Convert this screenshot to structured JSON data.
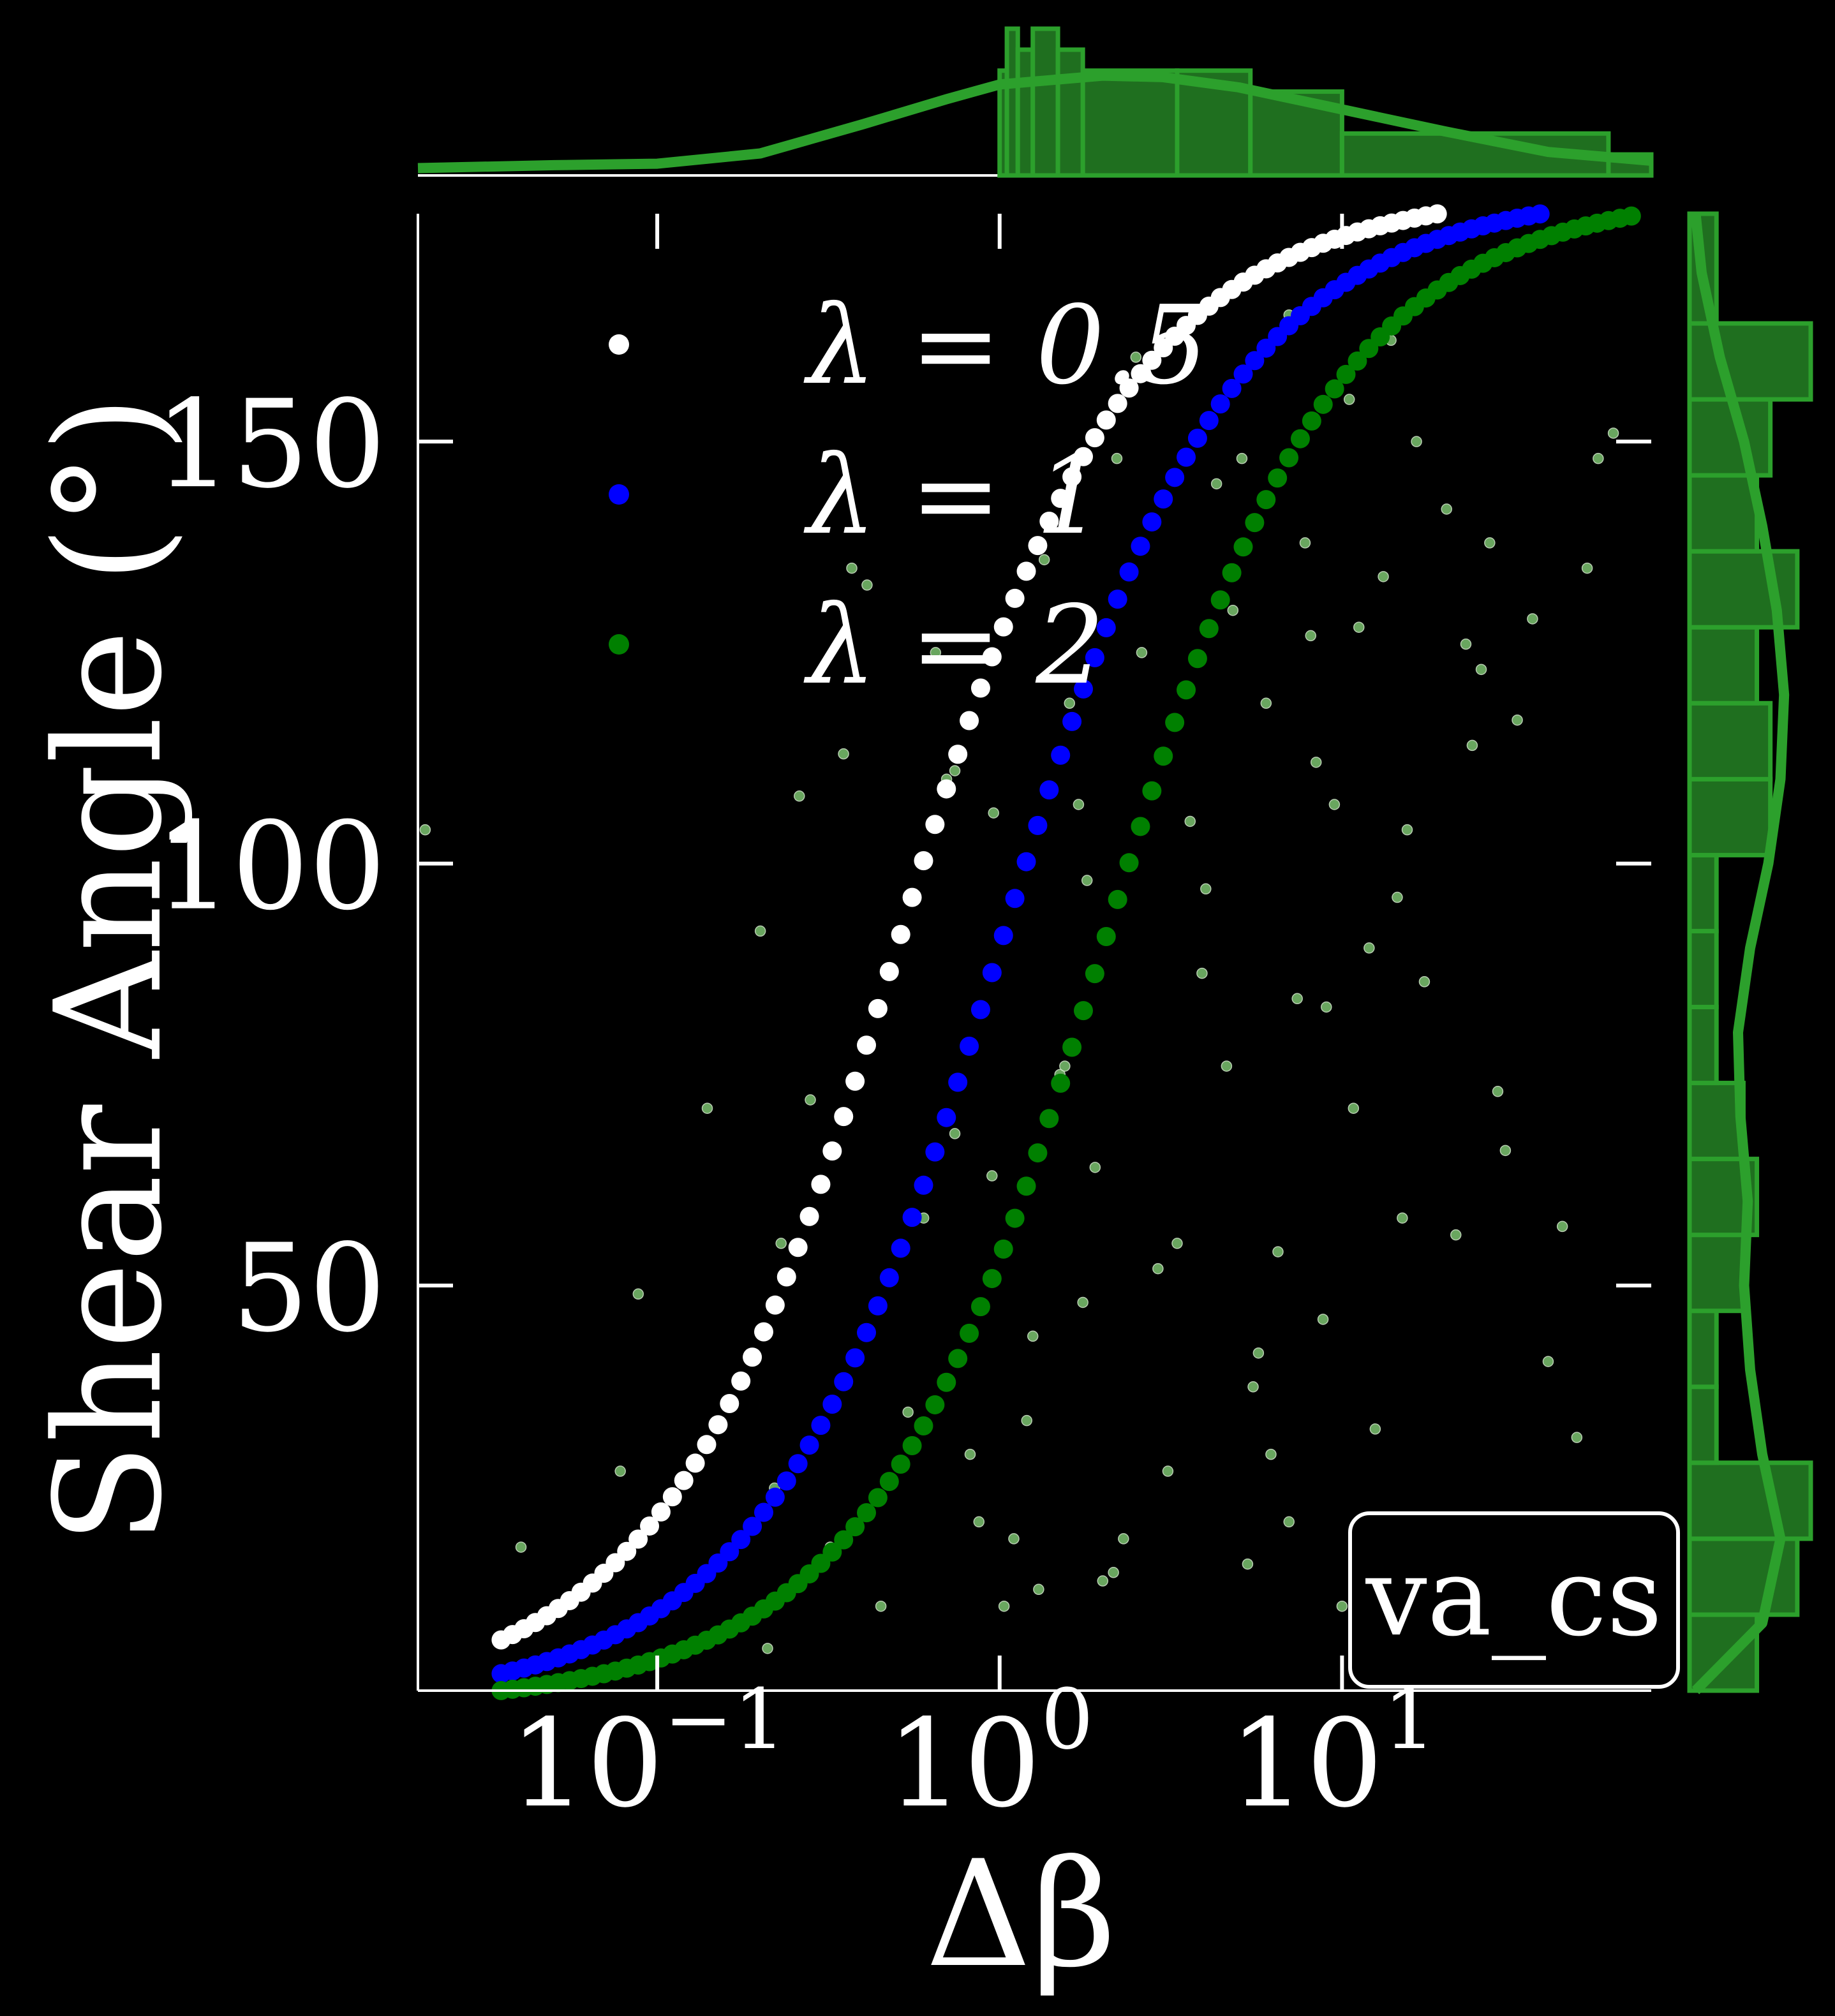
{
  "chart_data": {
    "type": "scatter",
    "xlabel": "Δβ",
    "ylabel": "Shear Angle (°)",
    "x_scale": "log",
    "xlim": [
      0.02,
      80
    ],
    "ylim": [
      2,
      177
    ],
    "x_ticks": [
      {
        "value": 0.1,
        "base": "10",
        "exp": "−1"
      },
      {
        "value": 1,
        "base": "10",
        "exp": "0"
      },
      {
        "value": 10,
        "base": "10",
        "exp": "1"
      }
    ],
    "y_ticks": [
      {
        "value": 50,
        "label": "50"
      },
      {
        "value": 100,
        "label": "100"
      },
      {
        "value": 150,
        "label": "150"
      }
    ],
    "grid": false,
    "legend_position": "upper-left",
    "tag": "va_cs",
    "series": [
      {
        "name": "λ = 0.5",
        "color": "#ffffff",
        "lambda": 0.5
      },
      {
        "name": "λ = 1",
        "color": "#0000ff",
        "lambda": 1
      },
      {
        "name": "λ = 2",
        "color": "#008000",
        "lambda": 2
      }
    ],
    "curve_model": {
      "form": "theta = 2*atan(x/lambda)",
      "x_range": [
        0.035,
        70
      ],
      "n_points": 100
    },
    "scatter_points": {
      "color": "#7cc470",
      "points": [
        [
          0.021,
          104
        ],
        [
          0.04,
          19
        ],
        [
          0.078,
          28
        ],
        [
          0.088,
          49
        ],
        [
          0.14,
          71
        ],
        [
          0.2,
          92
        ],
        [
          0.21,
          7
        ],
        [
          0.22,
          26
        ],
        [
          0.23,
          55
        ],
        [
          0.26,
          108
        ],
        [
          0.28,
          72
        ],
        [
          0.32,
          19
        ],
        [
          0.35,
          113
        ],
        [
          0.37,
          135
        ],
        [
          0.41,
          133
        ],
        [
          0.45,
          12
        ],
        [
          0.54,
          35
        ],
        [
          0.65,
          125
        ],
        [
          0.7,
          110
        ],
        [
          0.74,
          111
        ],
        [
          0.74,
          68
        ],
        [
          0.82,
          30
        ],
        [
          0.87,
          22
        ],
        [
          0.96,
          106
        ],
        [
          1.03,
          12
        ],
        [
          1.1,
          20
        ],
        [
          1.2,
          34
        ],
        [
          1.3,
          14
        ],
        [
          1.35,
          136
        ],
        [
          1.5,
          75
        ],
        [
          1.55,
          76
        ],
        [
          1.6,
          119
        ],
        [
          1.7,
          107
        ],
        [
          1.8,
          98
        ],
        [
          1.9,
          64
        ],
        [
          2.0,
          15
        ],
        [
          2.15,
          16
        ],
        [
          2.3,
          20
        ],
        [
          2.5,
          160
        ],
        [
          2.6,
          125
        ],
        [
          2.9,
          52
        ],
        [
          3.3,
          55
        ],
        [
          3.6,
          105
        ],
        [
          4.0,
          97
        ],
        [
          4.3,
          145
        ],
        [
          4.8,
          130
        ],
        [
          5.1,
          148
        ],
        [
          5.3,
          17
        ],
        [
          5.7,
          42
        ],
        [
          6.0,
          119
        ],
        [
          6.5,
          54
        ],
        [
          7.0,
          165
        ],
        [
          7.4,
          84
        ],
        [
          7.8,
          138
        ],
        [
          8.1,
          127
        ],
        [
          8.4,
          112
        ],
        [
          9.0,
          83
        ],
        [
          9.5,
          107
        ],
        [
          10.0,
          12
        ],
        [
          10.5,
          155
        ],
        [
          11.2,
          128
        ],
        [
          12.5,
          33
        ],
        [
          13.2,
          134
        ],
        [
          14.5,
          96
        ],
        [
          15.5,
          104
        ],
        [
          16.5,
          150
        ],
        [
          17.4,
          86
        ],
        [
          18.8,
          17
        ],
        [
          20.2,
          142
        ],
        [
          21.5,
          56
        ],
        [
          23.0,
          126
        ],
        [
          24.0,
          114
        ],
        [
          25.5,
          123
        ],
        [
          27.0,
          138
        ],
        [
          28.5,
          73
        ],
        [
          30.0,
          66
        ],
        [
          32.5,
          117
        ],
        [
          36.0,
          129
        ],
        [
          40.0,
          41
        ],
        [
          44.0,
          57
        ],
        [
          48.5,
          32
        ],
        [
          52.0,
          135
        ],
        [
          56.0,
          148
        ],
        [
          62.0,
          151
        ],
        [
          0.6,
          58
        ],
        [
          0.95,
          63
        ],
        [
          1.25,
          44
        ],
        [
          1.75,
          48
        ],
        [
          2.2,
          148
        ],
        [
          3.1,
          28
        ],
        [
          3.9,
          87
        ],
        [
          4.6,
          76
        ],
        [
          5.5,
          38
        ],
        [
          6.2,
          30
        ],
        [
          7.0,
          22
        ],
        [
          8.8,
          46
        ],
        [
          10.8,
          71
        ],
        [
          12.0,
          90
        ],
        [
          13.9,
          162
        ],
        [
          15.0,
          58
        ]
      ]
    },
    "top_histogram": {
      "bin_edges": [
        1.0,
        1.05,
        1.13,
        1.25,
        1.48,
        1.75,
        3.3,
        5.4,
        10.0,
        60.0,
        80.0
      ],
      "counts": [
        5,
        7,
        6,
        7,
        6,
        5,
        5,
        4,
        2,
        1
      ],
      "count_max": 7,
      "color": "#1f6f1f",
      "edge_color": "#2ca02c",
      "kde": [
        [
          0.02,
          0.05
        ],
        [
          0.05,
          0.07
        ],
        [
          0.1,
          0.08
        ],
        [
          0.2,
          0.15
        ],
        [
          0.4,
          0.35
        ],
        [
          0.7,
          0.52
        ],
        [
          1.0,
          0.62
        ],
        [
          2.0,
          0.68
        ],
        [
          3.0,
          0.67
        ],
        [
          5.0,
          0.6
        ],
        [
          10.0,
          0.45
        ],
        [
          20.0,
          0.3
        ],
        [
          40.0,
          0.16
        ],
        [
          80.0,
          0.1
        ]
      ]
    },
    "right_histogram": {
      "bin_edges": [
        2,
        11,
        20,
        29,
        38,
        47,
        56,
        65,
        74,
        83,
        92,
        101,
        110,
        119,
        128,
        137,
        146,
        155,
        164,
        177
      ],
      "counts": [
        5,
        8,
        9,
        2,
        2,
        4,
        5,
        4,
        2,
        2,
        2,
        6,
        6,
        5,
        8,
        5,
        6,
        9,
        2
      ],
      "count_max": 9,
      "color": "#1f6f1f",
      "edge_color": "#2ca02c",
      "kde": [
        [
          2,
          0.05
        ],
        [
          10,
          0.6
        ],
        [
          20,
          0.75
        ],
        [
          30,
          0.6
        ],
        [
          40,
          0.5
        ],
        [
          50,
          0.45
        ],
        [
          60,
          0.48
        ],
        [
          70,
          0.42
        ],
        [
          80,
          0.4
        ],
        [
          90,
          0.5
        ],
        [
          100,
          0.65
        ],
        [
          110,
          0.75
        ],
        [
          120,
          0.78
        ],
        [
          130,
          0.72
        ],
        [
          140,
          0.6
        ],
        [
          150,
          0.45
        ],
        [
          160,
          0.25
        ],
        [
          170,
          0.1
        ],
        [
          177,
          0.05
        ]
      ]
    }
  }
}
